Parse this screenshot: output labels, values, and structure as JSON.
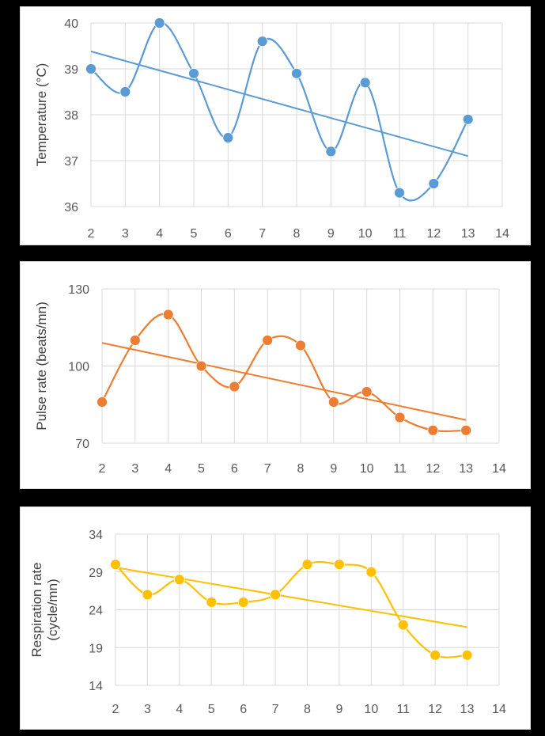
{
  "chart_data": [
    {
      "type": "line",
      "ylabel": "Temperature (°C)",
      "xlabel": "",
      "xlim": [
        2,
        14
      ],
      "ylim": [
        36,
        40
      ],
      "xticks": [
        "2",
        "3",
        "4",
        "5",
        "6",
        "7",
        "8",
        "9",
        "10",
        "11",
        "12",
        "13",
        "14"
      ],
      "yticks": [
        "36",
        "37",
        "38",
        "39",
        "40"
      ],
      "grid": true,
      "series": [
        {
          "color": "#5b9bd5",
          "x": [
            2,
            3,
            4,
            5,
            6,
            7,
            8,
            9,
            10,
            11,
            12,
            13
          ],
          "y": [
            39.0,
            38.5,
            40.0,
            38.9,
            37.5,
            39.6,
            38.9,
            37.2,
            38.7,
            36.3,
            36.5,
            37.9
          ],
          "smooth": true,
          "markers": true
        }
      ],
      "trendline": {
        "color": "#5b9bd5",
        "x": [
          2,
          13
        ],
        "y": [
          39.38,
          37.1
        ]
      }
    },
    {
      "type": "line",
      "ylabel": "Pulse rate (beats/mn)",
      "xlabel": "",
      "xlim": [
        2,
        14
      ],
      "ylim": [
        70,
        130
      ],
      "xticks": [
        "2",
        "3",
        "4",
        "5",
        "6",
        "7",
        "8",
        "9",
        "10",
        "11",
        "12",
        "13",
        "14"
      ],
      "yticks": [
        "70",
        "100",
        "130"
      ],
      "grid": true,
      "series": [
        {
          "color": "#ed7d31",
          "x": [
            2,
            3,
            4,
            5,
            6,
            7,
            8,
            9,
            10,
            11,
            12,
            13
          ],
          "y": [
            86,
            110,
            120,
            100,
            92,
            110,
            108,
            86,
            90,
            80,
            75,
            75
          ],
          "smooth": true,
          "markers": true
        }
      ],
      "trendline": {
        "color": "#ed7d31",
        "x": [
          2,
          13
        ],
        "y": [
          109,
          79
        ]
      }
    },
    {
      "type": "line",
      "ylabel": "Respiration rate (cycle/mn)",
      "xlabel": "",
      "xlim": [
        2,
        14
      ],
      "ylim": [
        14,
        34
      ],
      "xticks": [
        "2",
        "3",
        "4",
        "5",
        "6",
        "7",
        "8",
        "9",
        "10",
        "11",
        "12",
        "13",
        "14"
      ],
      "yticks": [
        "14",
        "19",
        "24",
        "29",
        "34"
      ],
      "grid": true,
      "series": [
        {
          "color": "#ffc000",
          "x": [
            2,
            3,
            4,
            5,
            6,
            7,
            8,
            9,
            10,
            11,
            12,
            13
          ],
          "y": [
            30,
            26,
            28,
            25,
            25,
            26,
            30,
            30,
            29,
            22,
            18,
            18
          ],
          "smooth": true,
          "markers": true
        }
      ],
      "trendline": {
        "color": "#ffc000",
        "x": [
          2,
          13
        ],
        "y": [
          29.6,
          21.7
        ]
      }
    }
  ]
}
